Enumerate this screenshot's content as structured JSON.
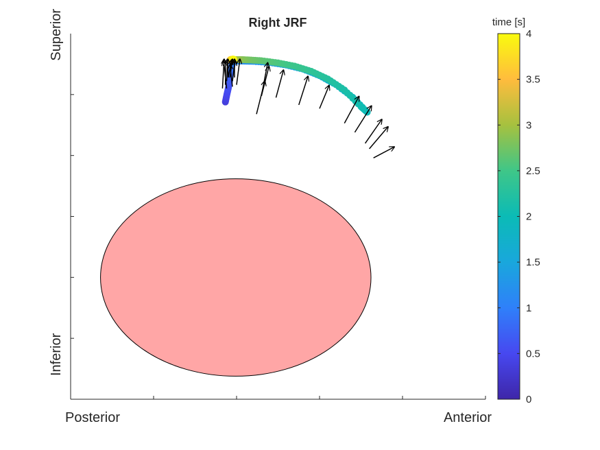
{
  "chart_data": {
    "type": "scatter",
    "title": "Right JRF",
    "x_axis": {
      "left_label": "Posterior",
      "right_label": "Anterior"
    },
    "y_axis": {
      "top_label": "Superior",
      "bottom_label": "Inferior"
    },
    "colorbar": {
      "label": "time [s]",
      "range": [
        0,
        4
      ],
      "ticks": [
        "0",
        "0.5",
        "1",
        "1.5",
        "2",
        "2.5",
        "3",
        "3.5",
        "4"
      ],
      "colormap": "parula"
    },
    "trajectory_points": [
      {
        "t": 0.35,
        "x": 0.373,
        "y": 0.813
      },
      {
        "t": 0.45,
        "x": 0.376,
        "y": 0.83
      },
      {
        "t": 0.55,
        "x": 0.38,
        "y": 0.85
      },
      {
        "t": 0.65,
        "x": 0.383,
        "y": 0.87
      },
      {
        "t": 0.75,
        "x": 0.385,
        "y": 0.888
      },
      {
        "t": 0.85,
        "x": 0.387,
        "y": 0.905
      },
      {
        "t": 0.95,
        "x": 0.39,
        "y": 0.918
      },
      {
        "t": 1.05,
        "x": 0.395,
        "y": 0.925
      },
      {
        "t": 1.15,
        "x": 0.41,
        "y": 0.925
      },
      {
        "t": 1.25,
        "x": 0.44,
        "y": 0.924
      },
      {
        "t": 1.35,
        "x": 0.48,
        "y": 0.921
      },
      {
        "t": 1.45,
        "x": 0.52,
        "y": 0.914
      },
      {
        "t": 1.55,
        "x": 0.56,
        "y": 0.903
      },
      {
        "t": 1.65,
        "x": 0.6,
        "y": 0.885
      },
      {
        "t": 1.75,
        "x": 0.64,
        "y": 0.86
      },
      {
        "t": 1.85,
        "x": 0.68,
        "y": 0.826
      },
      {
        "t": 1.95,
        "x": 0.715,
        "y": 0.785
      },
      {
        "t": 2.05,
        "x": 0.7,
        "y": 0.8
      },
      {
        "t": 2.15,
        "x": 0.66,
        "y": 0.846
      },
      {
        "t": 2.25,
        "x": 0.62,
        "y": 0.876
      },
      {
        "t": 2.35,
        "x": 0.58,
        "y": 0.897
      },
      {
        "t": 2.45,
        "x": 0.54,
        "y": 0.911
      },
      {
        "t": 2.55,
        "x": 0.5,
        "y": 0.92
      },
      {
        "t": 2.65,
        "x": 0.46,
        "y": 0.926
      },
      {
        "t": 2.75,
        "x": 0.43,
        "y": 0.928
      },
      {
        "t": 2.85,
        "x": 0.41,
        "y": 0.929
      },
      {
        "t": 3.0,
        "x": 0.397,
        "y": 0.929
      },
      {
        "t": 3.2,
        "x": 0.39,
        "y": 0.929
      },
      {
        "t": 3.4,
        "x": 0.388,
        "y": 0.929
      },
      {
        "t": 3.6,
        "x": 0.385,
        "y": 0.929
      },
      {
        "t": 3.8,
        "x": 0.39,
        "y": 0.93
      },
      {
        "t": 4.0,
        "x": 0.393,
        "y": 0.93
      }
    ],
    "force_vectors": [
      {
        "x": 0.366,
        "y": 0.85,
        "dx": 0.004,
        "dy": 0.08
      },
      {
        "x": 0.373,
        "y": 0.86,
        "dx": 0.001,
        "dy": 0.065
      },
      {
        "x": 0.376,
        "y": 0.87,
        "dx": 0.003,
        "dy": 0.06
      },
      {
        "x": 0.38,
        "y": 0.88,
        "dx": -0.002,
        "dy": 0.05
      },
      {
        "x": 0.384,
        "y": 0.88,
        "dx": 0.006,
        "dy": 0.05
      },
      {
        "x": 0.39,
        "y": 0.87,
        "dx": 0.006,
        "dy": 0.055
      },
      {
        "x": 0.395,
        "y": 0.88,
        "dx": 0.0,
        "dy": 0.05
      },
      {
        "x": 0.4,
        "y": 0.86,
        "dx": 0.008,
        "dy": 0.07
      },
      {
        "x": 0.376,
        "y": 0.85,
        "dx": -0.007,
        "dy": 0.075
      },
      {
        "x": 0.38,
        "y": 0.88,
        "dx": 0.008,
        "dy": 0.048
      },
      {
        "x": 0.39,
        "y": 0.855,
        "dx": -0.006,
        "dy": 0.06
      },
      {
        "x": 0.46,
        "y": 0.83,
        "dx": 0.015,
        "dy": 0.09
      },
      {
        "x": 0.46,
        "y": 0.83,
        "dx": 0.018,
        "dy": 0.08
      },
      {
        "x": 0.448,
        "y": 0.78,
        "dx": 0.02,
        "dy": 0.09
      },
      {
        "x": 0.495,
        "y": 0.825,
        "dx": 0.018,
        "dy": 0.075
      },
      {
        "x": 0.55,
        "y": 0.805,
        "dx": 0.022,
        "dy": 0.078
      },
      {
        "x": 0.6,
        "y": 0.795,
        "dx": 0.023,
        "dy": 0.063
      },
      {
        "x": 0.66,
        "y": 0.755,
        "dx": 0.035,
        "dy": 0.073
      },
      {
        "x": 0.685,
        "y": 0.73,
        "dx": 0.04,
        "dy": 0.072
      },
      {
        "x": 0.71,
        "y": 0.7,
        "dx": 0.04,
        "dy": 0.065
      },
      {
        "x": 0.72,
        "y": 0.685,
        "dx": 0.045,
        "dy": 0.06
      },
      {
        "x": 0.73,
        "y": 0.66,
        "dx": 0.05,
        "dy": 0.03
      }
    ],
    "ellipse": {
      "cx": 0.398,
      "cy": 0.333,
      "rx": 0.326,
      "ry": 0.27
    }
  }
}
